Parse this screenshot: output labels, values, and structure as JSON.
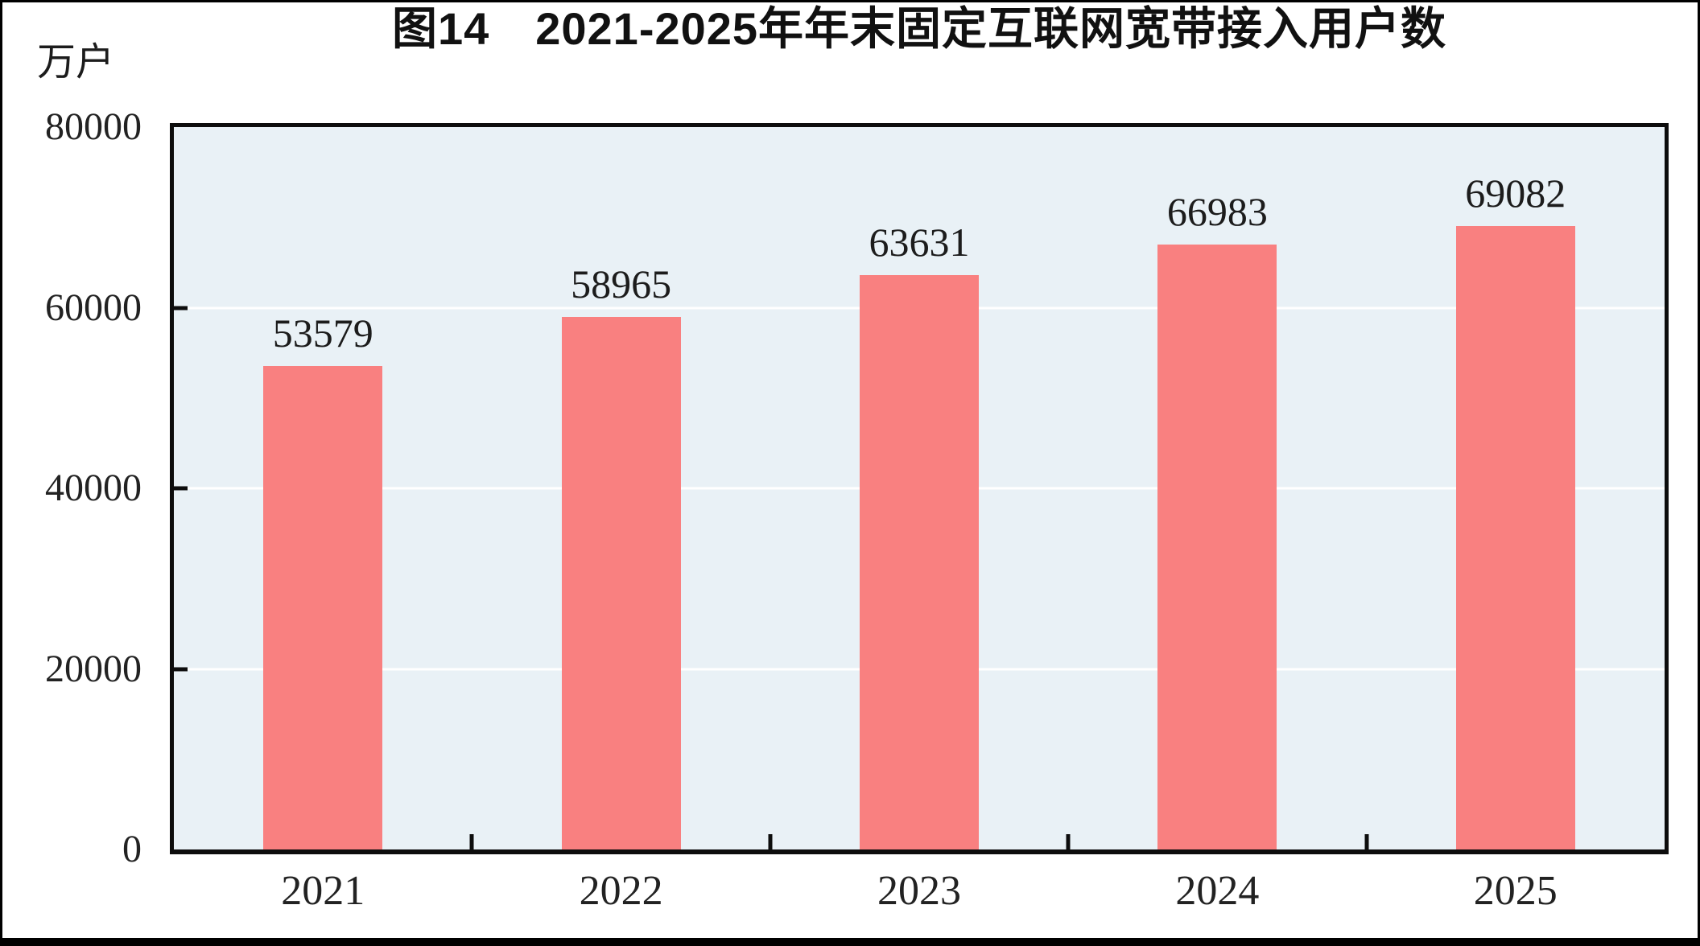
{
  "figure": {
    "title": "图14　2021-2025年年末固定互联网宽带接入用户数",
    "unit_label": "万户"
  },
  "chart_data": {
    "type": "bar",
    "title": "图14　2021-2025年年末固定互联网宽带接入用户数",
    "unit": "万户",
    "categories": [
      "2021",
      "2022",
      "2023",
      "2024",
      "2025"
    ],
    "values": [
      53579,
      58965,
      63631,
      66983,
      69082
    ],
    "data_labels": [
      53579,
      58965,
      63631,
      66983,
      69082
    ],
    "xlabel": "",
    "ylabel": "万户",
    "ylim": [
      0,
      80000
    ],
    "yticks": [
      0,
      20000,
      40000,
      60000,
      80000
    ],
    "grid": "horizontal",
    "legend_position": "none",
    "bar_color": "#F98080",
    "plot_bg_color": "#E9F1F6",
    "gridline_color": "#FFFFFF",
    "axis_color": "#0D0D0D",
    "text_color": "#1C1C1C"
  }
}
